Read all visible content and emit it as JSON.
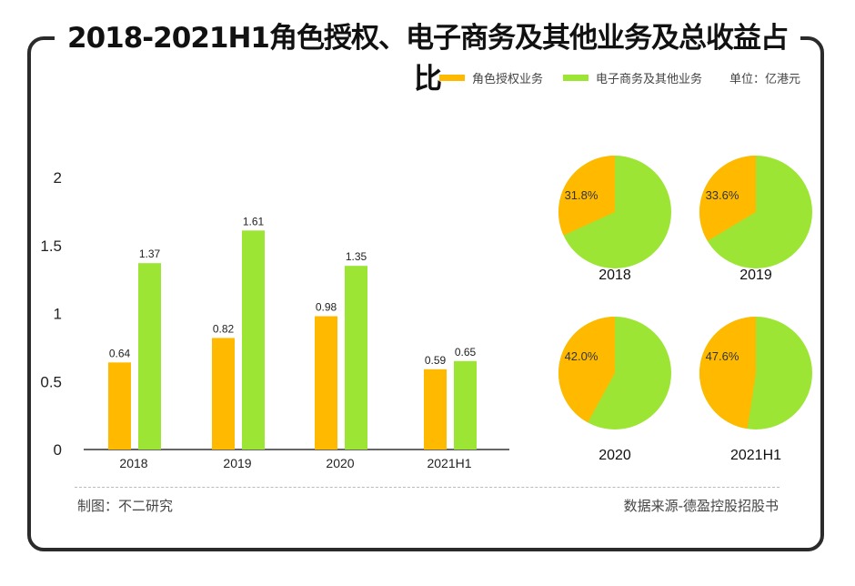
{
  "title": "2018-2021H1角色授权、电子商务及其他业务及总收益占比",
  "legend": {
    "series1": "角色授权业务",
    "series2": "电子商务及其他业务",
    "unit": "单位：亿港元"
  },
  "footer": {
    "left": "制图：不二研究",
    "right": "数据来源-德盈控股招股书"
  },
  "colors": {
    "series1": "#FFBA00",
    "series2": "#9DE535"
  },
  "chart_data": [
    {
      "type": "bar",
      "categories": [
        "2018",
        "2019",
        "2020",
        "2021H1"
      ],
      "series": [
        {
          "name": "角色授权业务",
          "values": [
            0.64,
            0.82,
            0.98,
            0.59
          ]
        },
        {
          "name": "电子商务及其他业务",
          "values": [
            1.37,
            1.61,
            1.35,
            0.65
          ]
        }
      ],
      "yticks": [
        "0",
        "0.5",
        "1",
        "1.5",
        "2"
      ],
      "ylim": [
        0,
        2
      ],
      "grid": false
    },
    {
      "type": "pie",
      "pies": [
        {
          "label": "2018",
          "share": 31.8,
          "text": "31.8%"
        },
        {
          "label": "2019",
          "share": 33.6,
          "text": "33.6%"
        },
        {
          "label": "2020",
          "share": 42.0,
          "text": "42.0%"
        },
        {
          "label": "2021H1",
          "share": 47.6,
          "text": "47.6%"
        }
      ]
    }
  ]
}
